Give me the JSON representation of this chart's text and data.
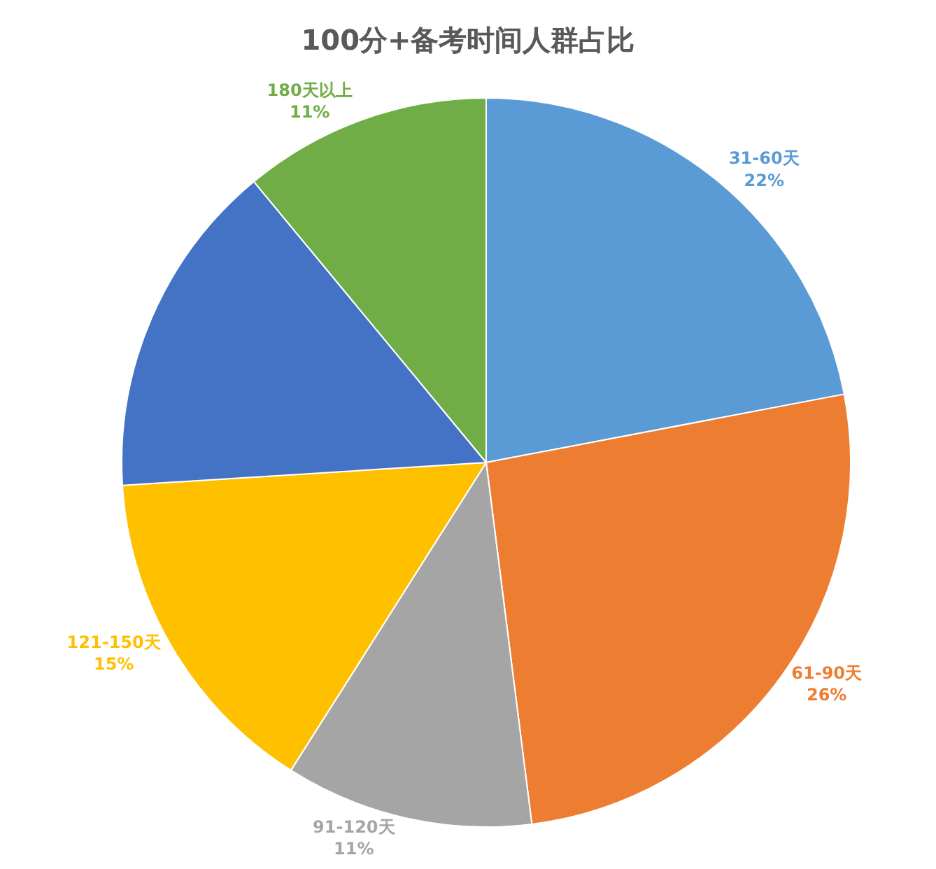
{
  "chart_data": {
    "type": "pie",
    "title": "100分+备考时间人群占比",
    "categories": [
      "31-60天",
      "61-90天",
      "91-120天",
      "121-150天",
      null,
      "180天以上"
    ],
    "values": [
      22,
      26,
      11,
      15,
      15,
      11
    ],
    "value_labels": [
      "22%",
      "26%",
      "11%",
      "15%",
      null,
      "11%"
    ],
    "colors": [
      "#5b9bd5",
      "#ed7d31",
      "#a5a5a5",
      "#ffc000",
      "#4472c4",
      "#70ad47"
    ],
    "legend": false
  }
}
